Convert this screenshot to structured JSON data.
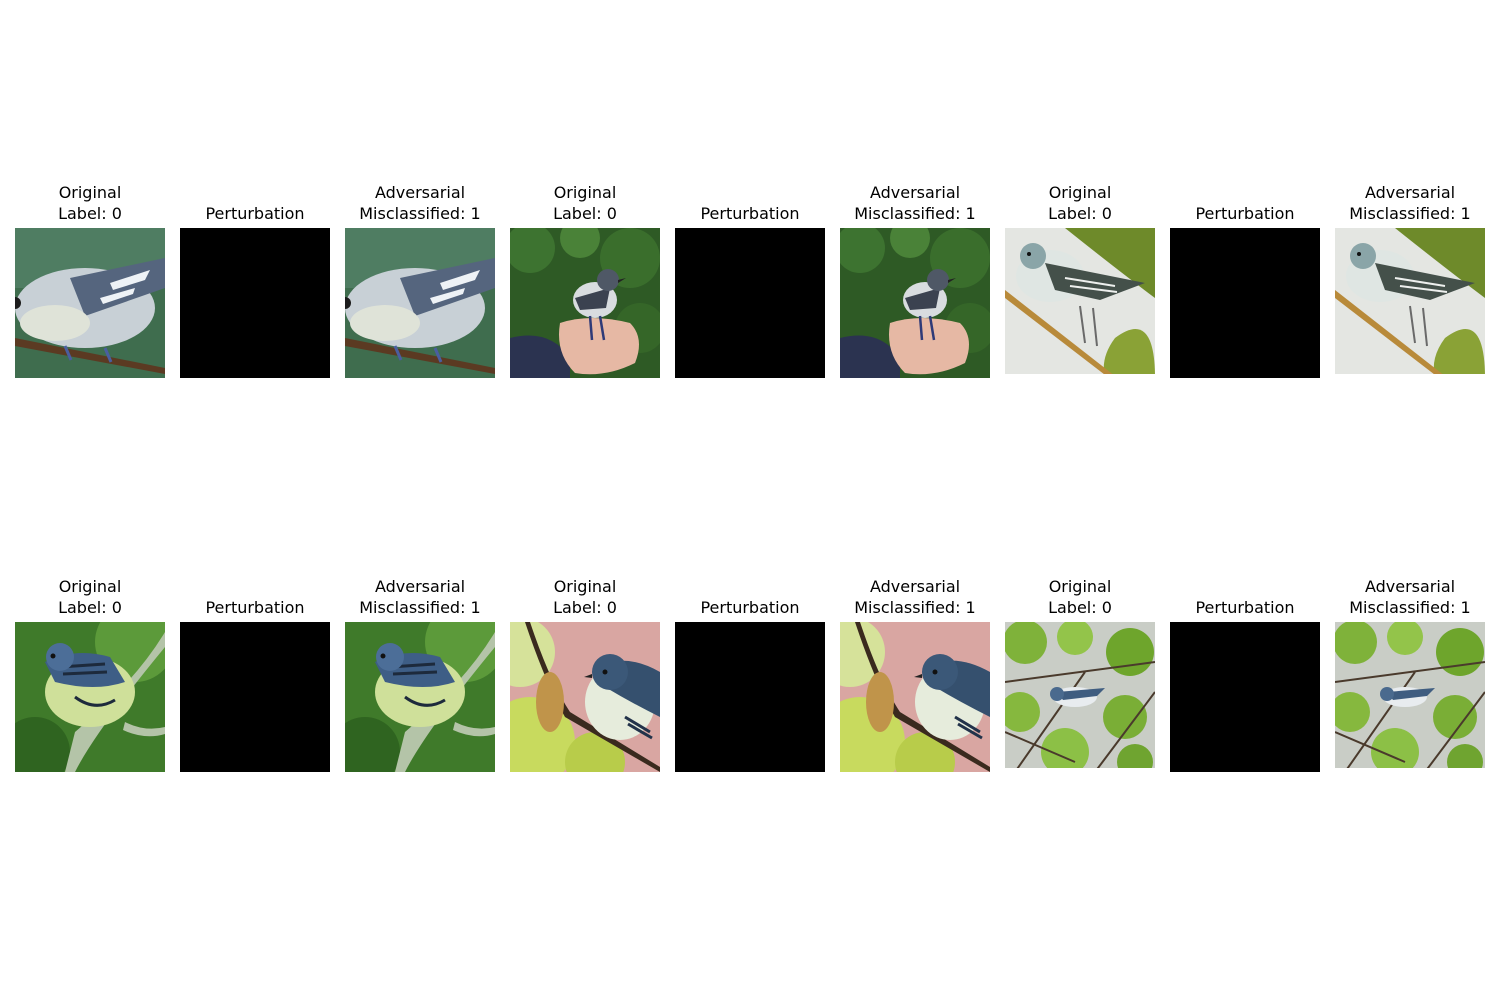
{
  "colors": {
    "background": "#ffffff",
    "perturbation": "#000000"
  },
  "rows": [
    {
      "groups": [
        {
          "original": {
            "line1": "Original",
            "line2": "Label: 0",
            "scene": "blue-gray warbler on branch, green background"
          },
          "perturbation": {
            "line1": "Perturbation"
          },
          "adversarial": {
            "line1": "Adversarial",
            "line2": "Misclassified: 1",
            "scene": "blue-gray warbler on branch, green background"
          }
        },
        {
          "original": {
            "line1": "Original",
            "line2": "Label: 0",
            "scene": "warbler perched on human hand, green foliage"
          },
          "perturbation": {
            "line1": "Perturbation"
          },
          "adversarial": {
            "line1": "Adversarial",
            "line2": "Misclassified: 1",
            "scene": "warbler perched on human hand, green foliage"
          }
        },
        {
          "original": {
            "line1": "Original",
            "line2": "Label: 0",
            "scene": "warbler on diagonal twig, olive and white background"
          },
          "perturbation": {
            "line1": "Perturbation"
          },
          "adversarial": {
            "line1": "Adversarial",
            "line2": "Misclassified: 1",
            "scene": "warbler on diagonal twig, olive and white background"
          }
        }
      ]
    },
    {
      "groups": [
        {
          "original": {
            "line1": "Original",
            "line2": "Label: 0",
            "scene": "blue warbler on branch, green background"
          },
          "perturbation": {
            "line1": "Perturbation"
          },
          "adversarial": {
            "line1": "Adversarial",
            "line2": "Misclassified: 1",
            "scene": "blue warbler on branch, green background"
          }
        },
        {
          "original": {
            "line1": "Original",
            "line2": "Label: 0",
            "scene": "blue warbler with pink and yellow-green background"
          },
          "perturbation": {
            "line1": "Perturbation"
          },
          "adversarial": {
            "line1": "Adversarial",
            "line2": "Misclassified: 1",
            "scene": "blue warbler with pink and yellow-green background"
          }
        },
        {
          "original": {
            "line1": "Original",
            "line2": "Label: 0",
            "scene": "small warbler among leafy branches"
          },
          "perturbation": {
            "line1": "Perturbation"
          },
          "adversarial": {
            "line1": "Adversarial",
            "line2": "Misclassified: 1",
            "scene": "small warbler among leafy branches"
          }
        }
      ]
    }
  ]
}
